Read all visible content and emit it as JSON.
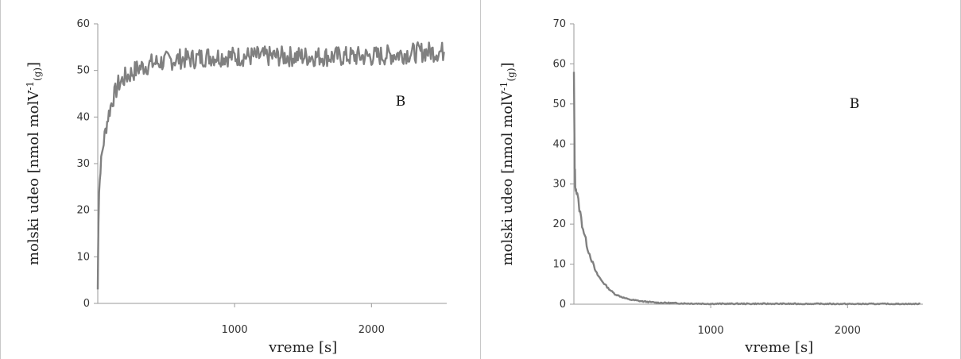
{
  "chart_data": [
    {
      "type": "line",
      "title": "",
      "xlabel": "vreme [s]",
      "ylabel": "molski udeo [nmol molV",
      "ylabel_sup": "-1",
      "ylabel_sub": "(g)",
      "ylabel_end": "]",
      "annotation": "B",
      "xlim": [
        0,
        2550
      ],
      "ylim": [
        0,
        60
      ],
      "xticks": [
        1000,
        2000
      ],
      "yticks": [
        0,
        10,
        20,
        30,
        40,
        50,
        60
      ],
      "grid": false,
      "series": [
        {
          "color": "#808080",
          "x": [
            0,
            5,
            10,
            20,
            30,
            50,
            75,
            100,
            150,
            200,
            250,
            300,
            400,
            500,
            600,
            700,
            800,
            900,
            1000,
            1200,
            1400,
            1600,
            1800,
            2000,
            2200,
            2400,
            2530
          ],
          "y": [
            3,
            18,
            24,
            29,
            32,
            36,
            40,
            43,
            47,
            48.5,
            49.5,
            50.5,
            51.5,
            52,
            52.5,
            52.5,
            53,
            53,
            53,
            53,
            53,
            53,
            53,
            53,
            53.5,
            54,
            54
          ]
        }
      ]
    },
    {
      "type": "line",
      "title": "",
      "xlabel": "vreme [s]",
      "ylabel": "molski udeo [nmol molV",
      "ylabel_sup": "-1",
      "ylabel_sub": "(g)",
      "ylabel_end": "]",
      "annotation": "B",
      "xlim": [
        0,
        2550
      ],
      "ylim": [
        0,
        70
      ],
      "xticks": [
        1000,
        2000
      ],
      "yticks": [
        0,
        10,
        20,
        30,
        40,
        50,
        60,
        70
      ],
      "grid": false,
      "series": [
        {
          "color": "#808080",
          "x": [
            0,
            3,
            6,
            10,
            15,
            25,
            40,
            60,
            80,
            100,
            130,
            160,
            200,
            250,
            300,
            350,
            400,
            500,
            600,
            700,
            800,
            1000,
            1500,
            2000,
            2530
          ],
          "y": [
            57,
            45,
            35,
            30,
            29,
            27,
            24,
            20,
            17,
            14,
            11,
            8,
            6,
            4,
            2.5,
            1.8,
            1.2,
            0.7,
            0.4,
            0.3,
            0.2,
            0.1,
            0.1,
            0.05,
            0.05
          ]
        }
      ]
    }
  ]
}
